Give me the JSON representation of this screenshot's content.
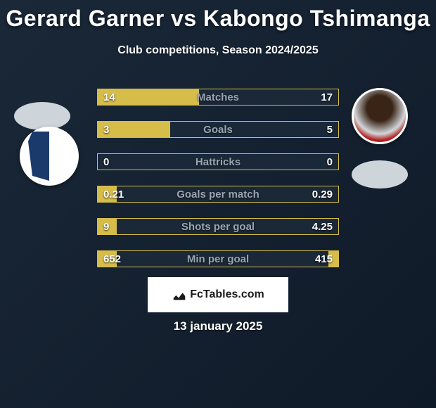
{
  "title": "Gerard Garner vs Kabongo Tshimanga",
  "subtitle": "Club competitions, Season 2024/2025",
  "footer_brand": "FcTables.com",
  "date": "13 january 2025",
  "colors": {
    "bar_fill": "#d6bd4a",
    "bar_border": "#d6bd4a",
    "bar_bg": "#1a2838",
    "bar_label": "#9aa5b0",
    "page_bg_from": "#1a2838",
    "page_bg_to": "#0f1a28"
  },
  "bars": [
    {
      "label": "Matches",
      "left": "14",
      "right": "17",
      "fill_left_pct": 42,
      "fill_right_pct": 0
    },
    {
      "label": "Goals",
      "left": "3",
      "right": "5",
      "fill_left_pct": 30,
      "fill_right_pct": 0
    },
    {
      "label": "Hattricks",
      "left": "0",
      "right": "0",
      "fill_left_pct": 0,
      "fill_right_pct": 0
    },
    {
      "label": "Goals per match",
      "left": "0.21",
      "right": "0.29",
      "fill_left_pct": 8,
      "fill_right_pct": 0
    },
    {
      "label": "Shots per goal",
      "left": "9",
      "right": "4.25",
      "fill_left_pct": 8,
      "fill_right_pct": 0
    },
    {
      "label": "Min per goal",
      "left": "652",
      "right": "415",
      "fill_left_pct": 8,
      "fill_right_pct": 4
    }
  ],
  "typography": {
    "title_fontsize": 32,
    "subtitle_fontsize": 16,
    "bar_fontsize": 15,
    "date_fontsize": 17
  }
}
